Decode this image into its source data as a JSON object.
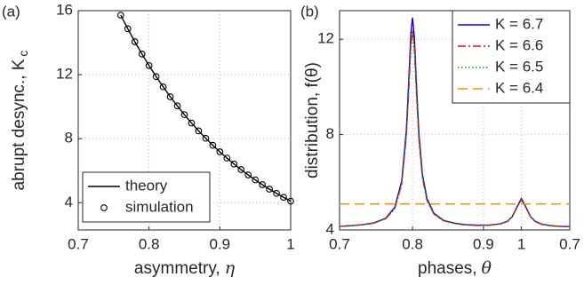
{
  "chart_data": [
    {
      "type": "line",
      "panel_label": "(a)",
      "xlabel": "asymmetry,",
      "xlabel_symbol": "η",
      "ylabel": "abrupt desync., K",
      "ylabel_sub": "c",
      "x": [
        0.76,
        0.77,
        0.78,
        0.79,
        0.8,
        0.81,
        0.82,
        0.83,
        0.84,
        0.85,
        0.86,
        0.87,
        0.88,
        0.89,
        0.9,
        0.91,
        0.92,
        0.93,
        0.94,
        0.95,
        0.96,
        0.97,
        0.98,
        0.99,
        1
      ],
      "series": [
        {
          "name": "theory",
          "color": "#000000",
          "style": "line",
          "values": [
            15.72,
            14.87,
            14.06,
            13.29,
            12.57,
            11.88,
            11.24,
            10.62,
            10.05,
            9.5,
            8.98,
            8.49,
            8.03,
            7.59,
            7.18,
            6.79,
            6.42,
            6.07,
            5.74,
            5.43,
            5.13,
            4.85,
            4.59,
            4.34,
            4.1
          ]
        },
        {
          "name": "simulation",
          "color": "#000000",
          "style": "marker",
          "values": [
            15.72,
            14.87,
            14.06,
            13.29,
            12.57,
            11.88,
            11.24,
            10.62,
            10.05,
            9.5,
            8.98,
            8.49,
            8.03,
            7.59,
            7.18,
            6.79,
            6.42,
            6.07,
            5.74,
            5.43,
            5.13,
            4.85,
            4.59,
            4.34,
            4.1
          ]
        }
      ],
      "xlim": [
        0.7,
        1
      ],
      "xticks": [
        0.7,
        0.8,
        0.9,
        1
      ],
      "ylim": [
        2.3,
        16
      ],
      "yticks": [
        4,
        8,
        12,
        16
      ],
      "grid": true,
      "legend": "lower left"
    },
    {
      "type": "line",
      "panel_label": "(b)",
      "xlabel": "phases,",
      "xlabel_symbol": "θ",
      "ylabel": "distribution, f(θ)",
      "x": [
        0,
        0.05,
        0.1,
        0.15,
        0.2,
        0.24,
        0.27,
        0.29,
        0.3,
        0.31,
        0.317,
        0.325,
        0.335,
        0.345,
        0.36,
        0.38,
        0.41,
        0.45,
        0.5,
        0.55,
        0.6,
        0.65,
        0.7,
        0.73,
        0.75,
        0.77,
        0.79,
        0.81,
        0.83,
        0.85,
        0.88,
        0.92,
        0.96,
        1
      ],
      "series": [
        {
          "name": "K = 6.7",
          "color": "#0000ff",
          "style": "solid",
          "values": [
            4.15,
            4.18,
            4.22,
            4.3,
            4.49,
            4.95,
            6.05,
            8.17,
            10.13,
            12.27,
            12.91,
            12.09,
            9.91,
            8.01,
            6.33,
            5.31,
            4.7,
            4.41,
            4.28,
            4.22,
            4.2,
            4.2,
            4.26,
            4.37,
            4.56,
            4.95,
            5.32,
            4.95,
            4.55,
            4.36,
            4.24,
            4.18,
            4.15,
            4.14
          ]
        },
        {
          "name": "K = 6.6",
          "color": "#ff0000",
          "style": "dashdot",
          "values": [
            4.15,
            4.18,
            4.22,
            4.29,
            4.47,
            4.9,
            5.94,
            7.94,
            9.79,
            11.81,
            12.4,
            11.64,
            9.58,
            7.79,
            6.2,
            5.24,
            4.67,
            4.39,
            4.27,
            4.21,
            4.19,
            4.2,
            4.26,
            4.36,
            4.55,
            4.93,
            5.28,
            4.93,
            4.54,
            4.35,
            4.23,
            4.17,
            4.15,
            4.14
          ]
        },
        {
          "name": "K = 6.5",
          "color": "#009900",
          "style": "dotted",
          "values": [
            4.15,
            4.18,
            4.22,
            4.29,
            4.47,
            4.89,
            5.91,
            7.89,
            9.71,
            11.7,
            12.29,
            11.53,
            9.5,
            7.74,
            6.17,
            5.23,
            4.67,
            4.39,
            4.27,
            4.21,
            4.19,
            4.2,
            4.26,
            4.36,
            4.55,
            4.92,
            5.26,
            4.92,
            4.54,
            4.35,
            4.23,
            4.17,
            4.15,
            4.14
          ]
        },
        {
          "name": "K = 6.4",
          "color": "#ff8c1a",
          "style": "dashed",
          "values": [
            5.09,
            5.09,
            5.09,
            5.09,
            5.09,
            5.09,
            5.09,
            5.09,
            5.09,
            5.09,
            5.09,
            5.09,
            5.09,
            5.09,
            5.09,
            5.09,
            5.09,
            5.09,
            5.09,
            5.09,
            5.09,
            5.09,
            5.09,
            5.09,
            5.09,
            5.09,
            5.09,
            5.09,
            5.09,
            5.09,
            5.09,
            5.09,
            5.09,
            5.09
          ]
        }
      ],
      "xlim": [
        0,
        1
      ],
      "xticks": [
        {
          "value": 0,
          "label": "0.7"
        },
        {
          "value": 0.317,
          "label": "0.8"
        },
        {
          "value": 0.625,
          "label": "0.9"
        },
        {
          "value": 0.79,
          "label": "1"
        },
        {
          "value": 1,
          "label": "0.7"
        }
      ],
      "ylim": [
        4,
        13.2
      ],
      "yticks": [
        4,
        8,
        12
      ],
      "grid": true,
      "legend": "upper right"
    }
  ]
}
